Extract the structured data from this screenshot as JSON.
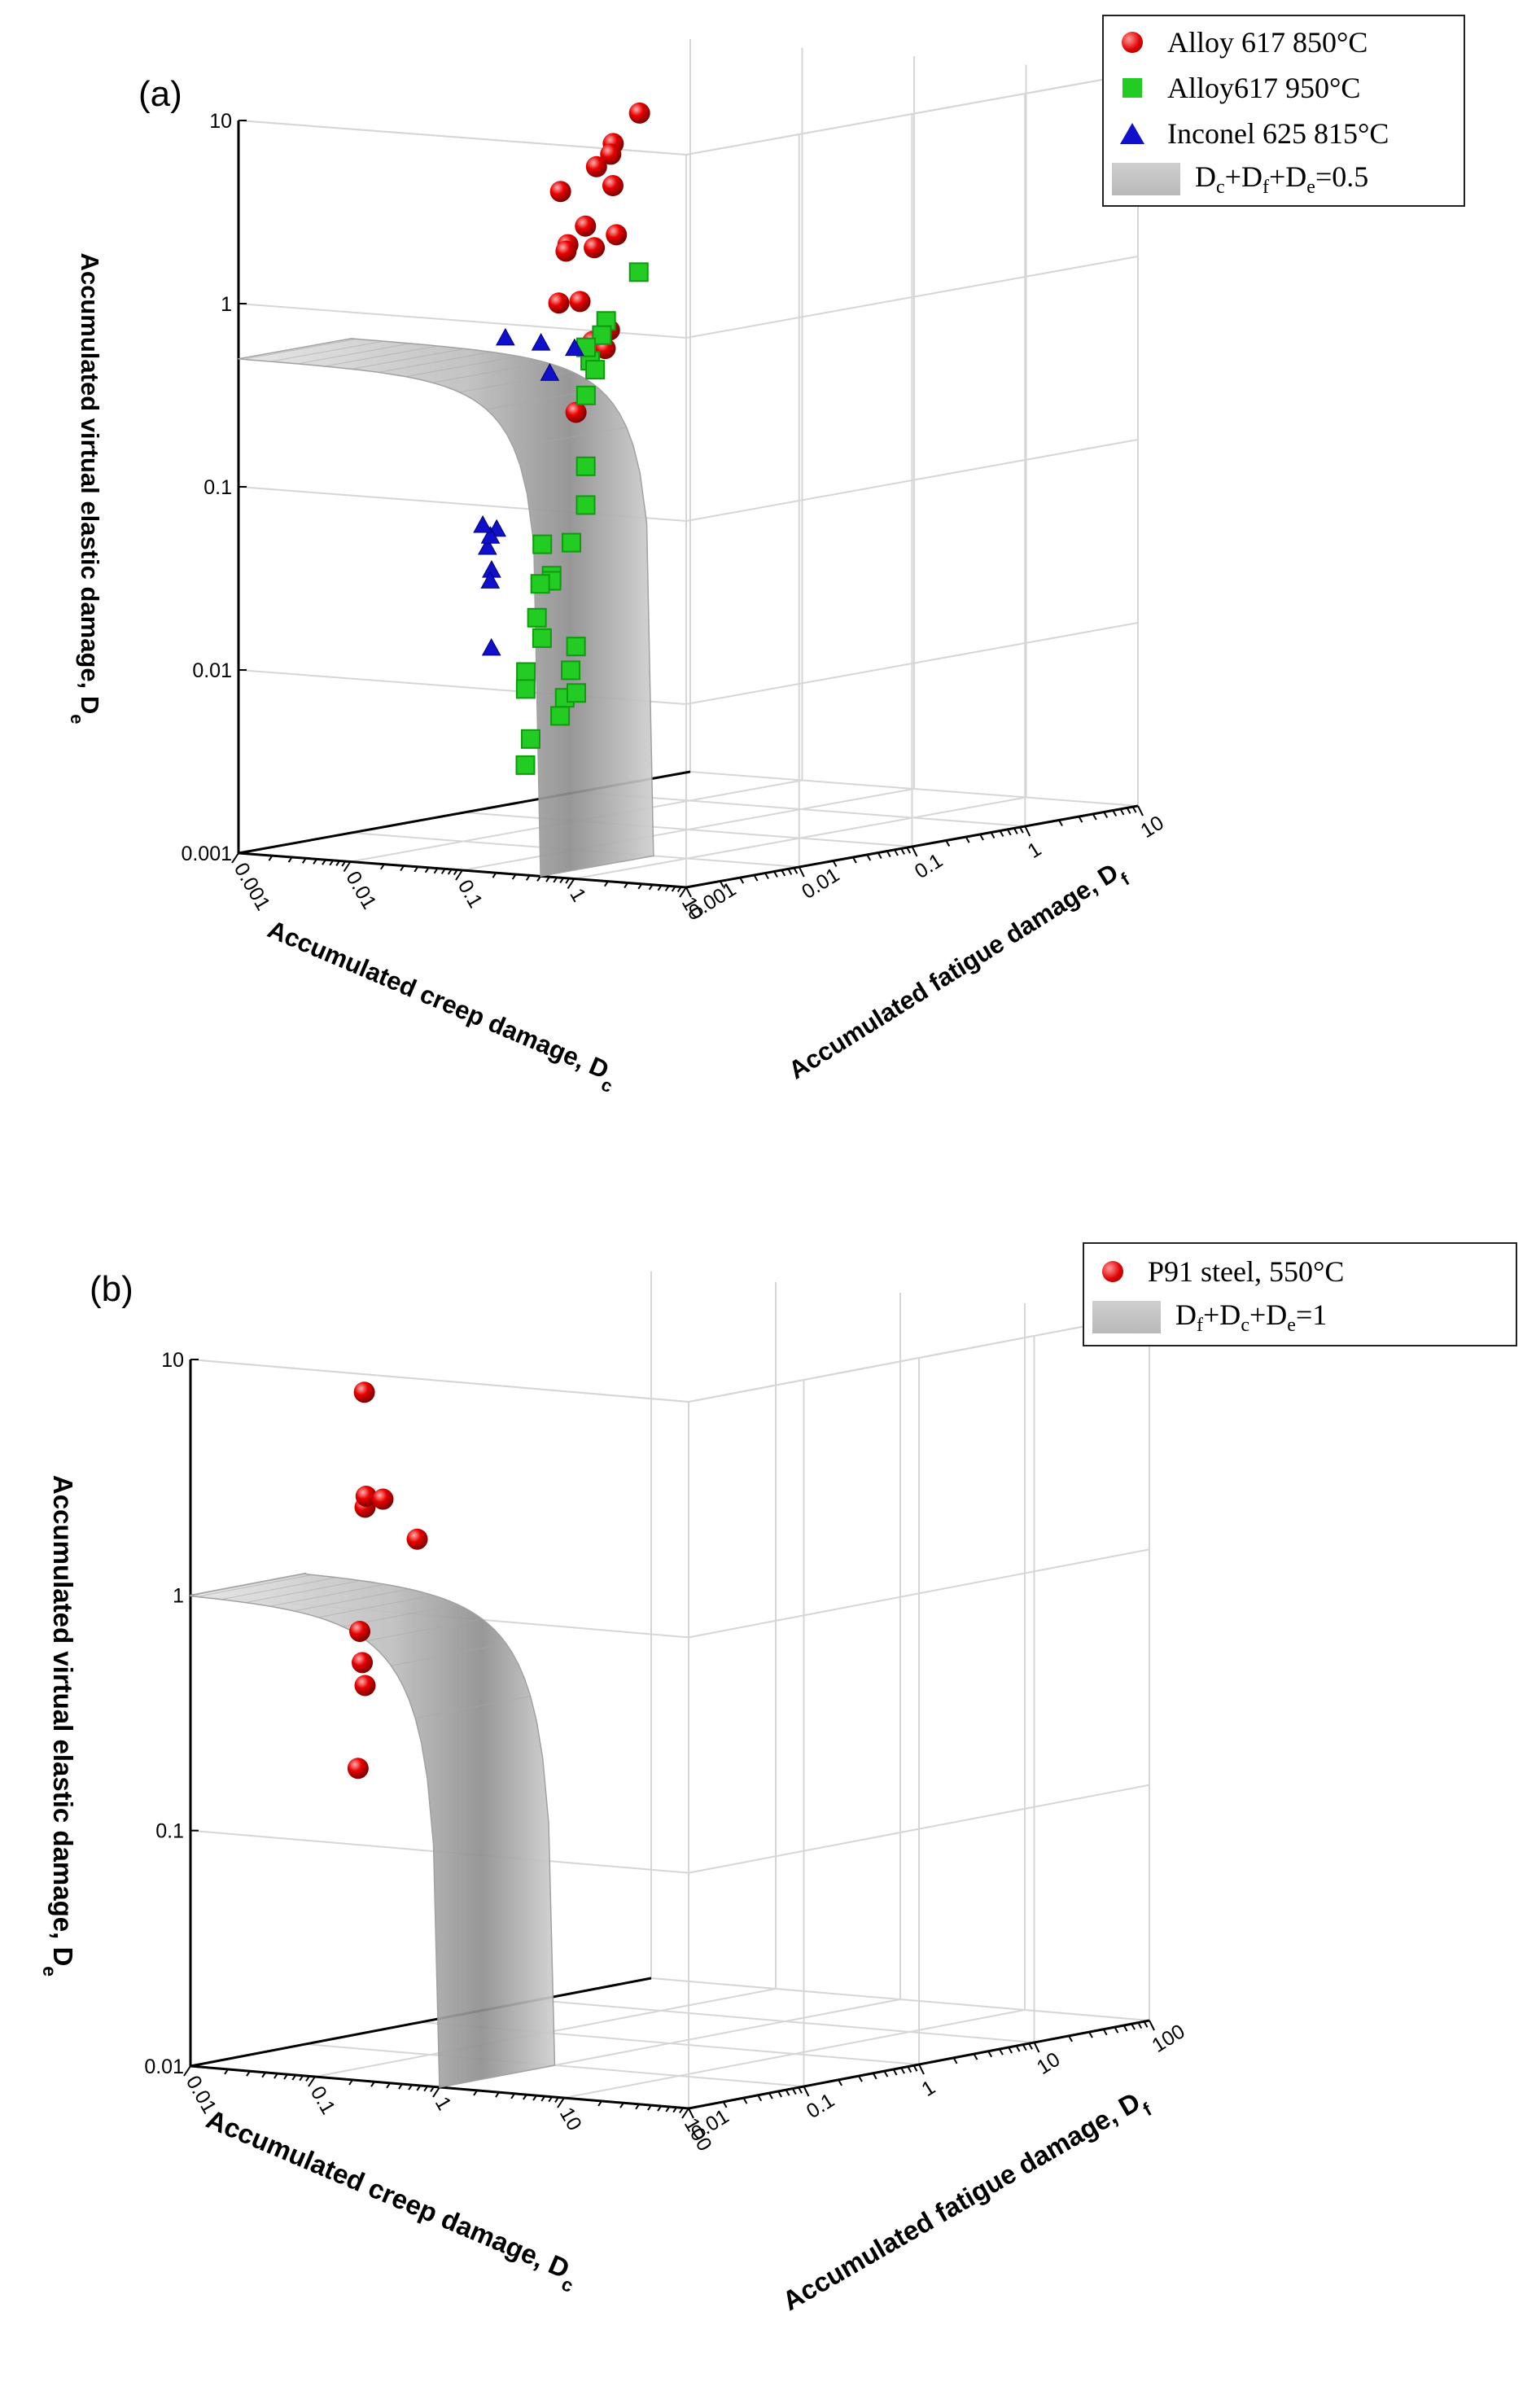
{
  "chart_data": [
    {
      "panel": "(a)",
      "type": "scatter3d",
      "x_axis": {
        "label": "Accumulated creep damage, D",
        "label_sub": "c",
        "scale": "log",
        "range": [
          0.001,
          10
        ],
        "tick_labels": [
          "0.001",
          "0.01",
          "0.1",
          "1",
          "10"
        ]
      },
      "y_axis": {
        "label": "Accumulated fatigue damage, D",
        "label_sub": "f",
        "scale": "log",
        "range": [
          0.001,
          10
        ],
        "tick_labels": [
          "0.001",
          "0.01",
          "0.1",
          "1",
          "10"
        ]
      },
      "z_axis": {
        "label": "Accumulated virtual elastic damage, D",
        "label_sub": "e",
        "scale": "log",
        "range": [
          0.001,
          10
        ],
        "tick_labels": [
          "0.001",
          "0.01",
          "0.1",
          "1",
          "10"
        ]
      },
      "legend": [
        {
          "text": "Alloy 617 850°C",
          "marker": "sphere",
          "color": "#e00000"
        },
        {
          "text": "Alloy617 950°C",
          "marker": "cube",
          "color": "#22cc22"
        },
        {
          "text": "Inconel 625 815°C",
          "marker": "triangle",
          "color": "#1010cc"
        },
        {
          "text_parts": [
            "D",
            "c",
            "+D",
            "f",
            "+D",
            "e",
            "=0.5"
          ],
          "marker": "surface",
          "color": "#bdbdbd"
        }
      ],
      "surface": {
        "equation": "Dc+Df+De=0.5",
        "total": 0.5
      },
      "series": [
        {
          "name": "Alloy 617 850°C",
          "marker": "sphere",
          "color": "#e00000",
          "points": [
            [
              0.004,
              0.9,
              5.5
            ],
            [
              0.003,
              0.7,
              3.8
            ],
            [
              0.004,
              0.5,
              3.5
            ],
            [
              0.005,
              0.3,
              3.2
            ],
            [
              0.0045,
              0.16,
              2.5
            ],
            [
              0.006,
              0.35,
              2.5
            ],
            [
              0.006,
              0.2,
              1.6
            ],
            [
              0.008,
              0.18,
              1.25
            ],
            [
              0.005,
              0.45,
              1.3
            ],
            [
              0.007,
              0.12,
              1.35
            ],
            [
              0.009,
              0.09,
              1.3
            ],
            [
              0.01,
              0.07,
              0.7
            ],
            [
              0.012,
              0.09,
              0.7
            ],
            [
              0.01,
              0.14,
              0.4
            ],
            [
              0.009,
              0.2,
              0.35
            ],
            [
              0.007,
              0.28,
              0.42
            ],
            [
              0.02,
              0.05,
              0.19
            ]
          ]
        },
        {
          "name": "Alloy617 950°C",
          "marker": "cube",
          "color": "#22cc22",
          "points": [
            [
              0.001,
              3.5,
              0.6
            ],
            [
              0.001,
              1.8,
              0.35
            ],
            [
              0.0011,
              1.5,
              0.3
            ],
            [
              0.001,
              1.3,
              0.22
            ],
            [
              0.0012,
              1.2,
              0.2
            ],
            [
              0.0015,
              0.8,
              0.28
            ],
            [
              0.002,
              0.6,
              0.16
            ],
            [
              0.003,
              0.4,
              0.07
            ],
            [
              0.004,
              0.3,
              0.045
            ],
            [
              0.005,
              0.18,
              0.03
            ],
            [
              0.004,
              0.15,
              0.02
            ],
            [
              0.006,
              0.1,
              0.02
            ],
            [
              0.01,
              0.05,
              0.035
            ],
            [
              0.012,
              0.04,
              0.022
            ],
            [
              0.015,
              0.03,
              0.015
            ],
            [
              0.02,
              0.025,
              0.012
            ],
            [
              0.018,
              0.02,
              0.008
            ],
            [
              0.03,
              0.012,
              0.007
            ],
            [
              0.05,
              0.008,
              0.004
            ],
            [
              0.06,
              0.006,
              0.003
            ],
            [
              0.02,
              0.05,
              0.01
            ],
            [
              0.03,
              0.03,
              0.008
            ],
            [
              0.04,
              0.02,
              0.006
            ],
            [
              0.01,
              0.1,
              0.005
            ],
            [
              0.012,
              0.06,
              0.004
            ]
          ]
        },
        {
          "name": "Inconel 625 815°C",
          "marker": "triangle",
          "color": "#1010cc",
          "points": [
            [
              0.5,
              0.002,
              0.7
            ],
            [
              0.3,
              0.002,
              0.5
            ],
            [
              0.2,
              0.0025,
              0.7
            ],
            [
              0.08,
              0.003,
              0.7
            ],
            [
              0.05,
              0.004,
              0.06
            ],
            [
              0.04,
              0.0045,
              0.035
            ],
            [
              0.035,
              0.005,
              0.03
            ],
            [
              0.03,
              0.0055,
              0.045
            ],
            [
              0.025,
              0.007,
              0.05
            ],
            [
              0.03,
              0.005,
              0.06
            ],
            [
              0.06,
              0.003,
              0.014
            ]
          ]
        }
      ]
    },
    {
      "panel": "(b)",
      "type": "scatter3d",
      "x_axis": {
        "label": "Accumulated creep damage, D",
        "label_sub": "c",
        "scale": "log",
        "range": [
          0.01,
          100
        ],
        "tick_labels": [
          "0.01",
          "0.1",
          "1",
          "10",
          "100"
        ]
      },
      "y_axis": {
        "label": "Accumulated fatigue damage, D",
        "label_sub": "f",
        "scale": "log",
        "range": [
          0.01,
          100
        ],
        "tick_labels": [
          "0.01",
          "0.1",
          "1",
          "10",
          "100"
        ]
      },
      "z_axis": {
        "label": "Accumulated virtual elastic damage, D",
        "label_sub": "e",
        "scale": "log",
        "range": [
          0.01,
          10
        ],
        "tick_labels": [
          "0.01",
          "0.1",
          "1",
          "10"
        ]
      },
      "legend": [
        {
          "text": "P91 steel, 550°C",
          "marker": "sphere",
          "color": "#e00000"
        },
        {
          "text_parts": [
            "D",
            "f",
            "+D",
            "c",
            "+D",
            "e",
            "=1"
          ],
          "marker": "surface",
          "color": "#bdbdbd"
        }
      ],
      "surface": {
        "equation": "Df+Dc+De=1",
        "total": 1
      },
      "series": [
        {
          "name": "P91 steel, 550°C",
          "marker": "sphere",
          "color": "#e00000",
          "points": [
            [
              0.025,
              0.12,
              6.0
            ],
            [
              0.03,
              0.1,
              2.0
            ],
            [
              0.028,
              0.11,
              2.2
            ],
            [
              0.022,
              0.2,
              2.0
            ],
            [
              0.015,
              0.6,
              1.2
            ],
            [
              0.03,
              0.09,
              0.6
            ],
            [
              0.035,
              0.08,
              0.45
            ],
            [
              0.03,
              0.1,
              0.35
            ],
            [
              0.05,
              0.05,
              0.17
            ]
          ]
        }
      ]
    }
  ]
}
